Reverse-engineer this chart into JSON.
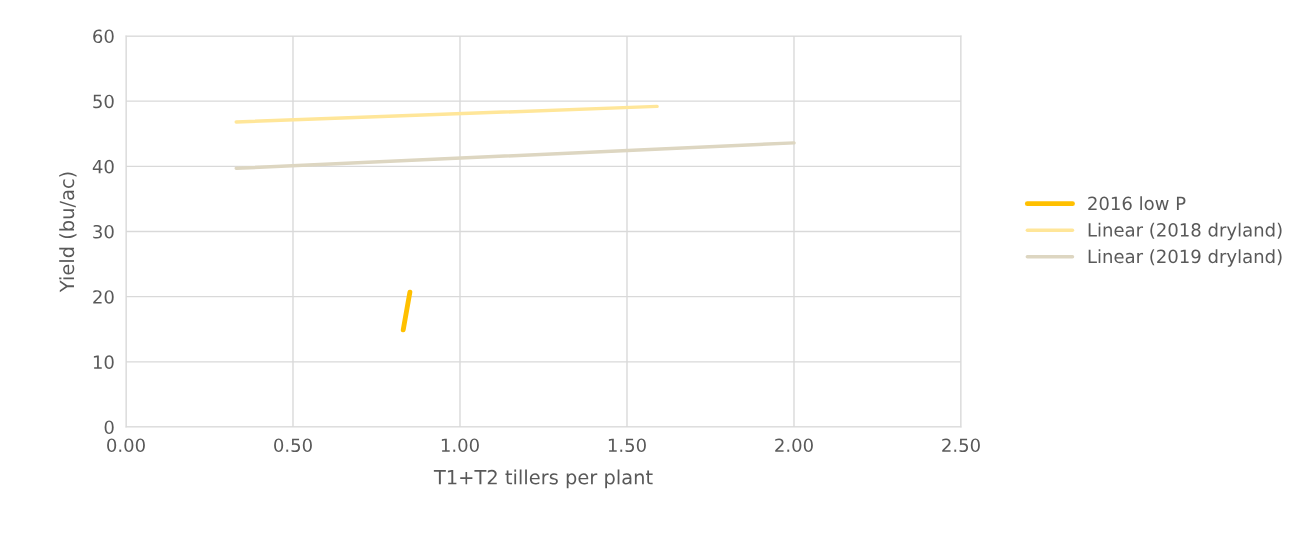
{
  "chart_data": {
    "type": "line",
    "xlabel": "T1+T2 tillers per plant",
    "ylabel": "Yield (bu/ac)",
    "xlim": [
      0,
      2.5
    ],
    "xticks": [
      {
        "value": 0,
        "label": "0.00"
      },
      {
        "value": 0.5,
        "label": "0.50"
      },
      {
        "value": 1,
        "label": "1.00"
      },
      {
        "value": 1.5,
        "label": "1.50"
      },
      {
        "value": 2,
        "label": "2.00"
      },
      {
        "value": 2.5,
        "label": "2.50"
      }
    ],
    "ylim": [
      0,
      60
    ],
    "yticks": [
      0,
      10,
      20,
      30,
      40,
      50,
      60
    ],
    "series": [
      {
        "name": "2016 low P",
        "color": "#ffc000",
        "x": [
          0.83,
          0.85
        ],
        "values": [
          14.9,
          20.7
        ]
      },
      {
        "name": "Linear (2018 dryland)",
        "color": "#ffe699",
        "x": [
          0.33,
          1.59
        ],
        "values": [
          46.8,
          49.2
        ]
      },
      {
        "name": "Linear (2019 dryland)",
        "color": "#ddd6c1",
        "x": [
          0.33,
          2.0
        ],
        "values": [
          39.7,
          43.6
        ]
      }
    ],
    "grid": true,
    "legend": "right",
    "marker": "none",
    "line_style": "solid"
  }
}
